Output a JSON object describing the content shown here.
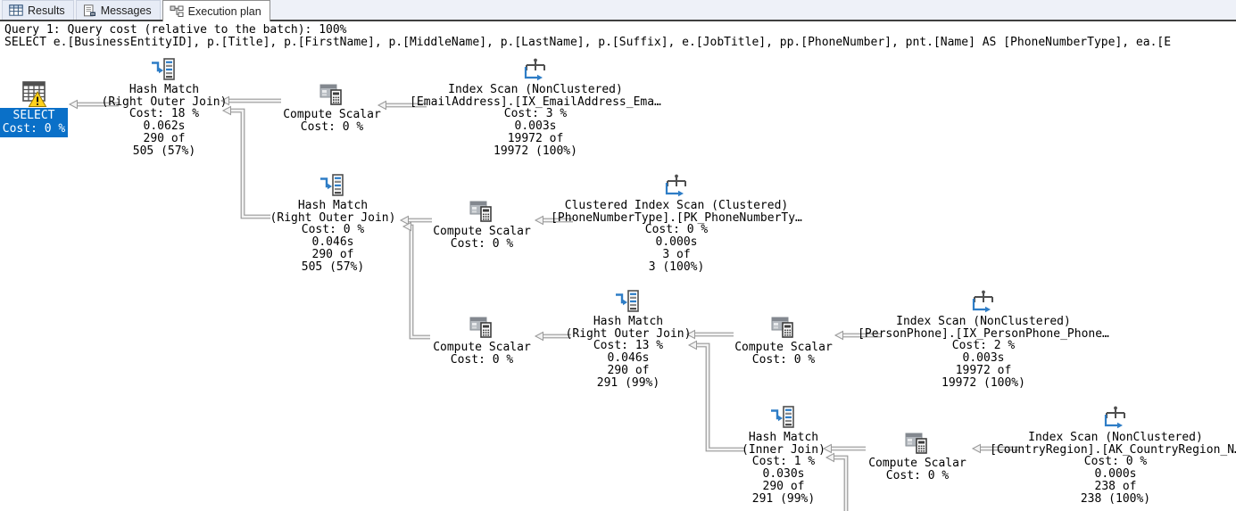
{
  "tabs": [
    {
      "label": "Results",
      "icon": "results-grid-icon",
      "selected": false
    },
    {
      "label": "Messages",
      "icon": "messages-icon",
      "selected": false
    },
    {
      "label": "Execution plan",
      "icon": "execution-plan-icon",
      "selected": true
    }
  ],
  "query_header": {
    "line1": "Query 1: Query cost (relative to the batch): 100%",
    "line2": "SELECT e.[BusinessEntityID], p.[Title], p.[FirstName], p.[MiddleName], p.[LastName], p.[Suffix], e.[JobTitle], pp.[PhoneNumber], pnt.[Name] AS [PhoneNumberType], ea.[E"
  },
  "plan": {
    "colors": {
      "selection_blue": "#0a70c8",
      "icon_blue": "#2e7dc6",
      "warning_yellow": "#ffd21c",
      "connector_gray": "#9a9a9a"
    },
    "nodes": [
      {
        "id": "select",
        "icon": "result-grid-warning-icon",
        "selected": true,
        "lines": [
          "SELECT",
          "Cost: 0 %"
        ]
      },
      {
        "id": "hash-match-1",
        "icon": "hash-match-icon",
        "selected": false,
        "lines": [
          "Hash Match",
          "(Right Outer Join)",
          "Cost: 18 %",
          "0.062s",
          "290 of",
          "505 (57%)"
        ]
      },
      {
        "id": "compute-scalar-1",
        "icon": "compute-scalar-icon",
        "selected": false,
        "lines": [
          "Compute Scalar",
          "Cost: 0 %"
        ]
      },
      {
        "id": "index-scan-emailaddress",
        "icon": "index-scan-icon",
        "selected": false,
        "lines": [
          "Index Scan (NonClustered)",
          "[EmailAddress].[IX_EmailAddress_Ema…",
          "Cost: 3 %",
          "0.003s",
          "19972 of",
          "19972 (100%)"
        ]
      },
      {
        "id": "hash-match-2",
        "icon": "hash-match-icon",
        "selected": false,
        "lines": [
          "Hash Match",
          "(Right Outer Join)",
          "Cost: 0 %",
          "0.046s",
          "290 of",
          "505 (57%)"
        ]
      },
      {
        "id": "compute-scalar-2",
        "icon": "compute-scalar-icon",
        "selected": false,
        "lines": [
          "Compute Scalar",
          "Cost: 0 %"
        ]
      },
      {
        "id": "clustered-index-scan-phonenumbertype",
        "icon": "clustered-index-scan-icon",
        "selected": false,
        "lines": [
          "Clustered Index Scan (Clustered)",
          "[PhoneNumberType].[PK_PhoneNumberTy…",
          "Cost: 0 %",
          "0.000s",
          "3 of",
          "3 (100%)"
        ]
      },
      {
        "id": "compute-scalar-3",
        "icon": "compute-scalar-icon",
        "selected": false,
        "lines": [
          "Compute Scalar",
          "Cost: 0 %"
        ]
      },
      {
        "id": "hash-match-3",
        "icon": "hash-match-icon",
        "selected": false,
        "lines": [
          "Hash Match",
          "(Right Outer Join)",
          "Cost: 13 %",
          "0.046s",
          "290 of",
          "291 (99%)"
        ]
      },
      {
        "id": "compute-scalar-4",
        "icon": "compute-scalar-icon",
        "selected": false,
        "lines": [
          "Compute Scalar",
          "Cost: 0 %"
        ]
      },
      {
        "id": "index-scan-personphone",
        "icon": "index-scan-icon",
        "selected": false,
        "lines": [
          "Index Scan (NonClustered)",
          "[PersonPhone].[IX_PersonPhone_Phone…",
          "Cost: 2 %",
          "0.003s",
          "19972 of",
          "19972 (100%)"
        ]
      },
      {
        "id": "hash-match-4",
        "icon": "hash-match-icon",
        "selected": false,
        "lines": [
          "Hash Match",
          "(Inner Join)",
          "Cost: 1 %",
          "0.030s",
          "290 of",
          "291 (99%)"
        ]
      },
      {
        "id": "compute-scalar-5",
        "icon": "compute-scalar-icon",
        "selected": false,
        "lines": [
          "Compute Scalar",
          "Cost: 0 %"
        ]
      },
      {
        "id": "index-scan-countryregion",
        "icon": "index-scan-icon",
        "selected": false,
        "lines": [
          "Index Scan (NonClustered)",
          "[CountryRegion].[AK_CountryRegion_N…",
          "Cost: 0 %",
          "0.000s",
          "238 of",
          "238 (100%)"
        ]
      }
    ]
  }
}
